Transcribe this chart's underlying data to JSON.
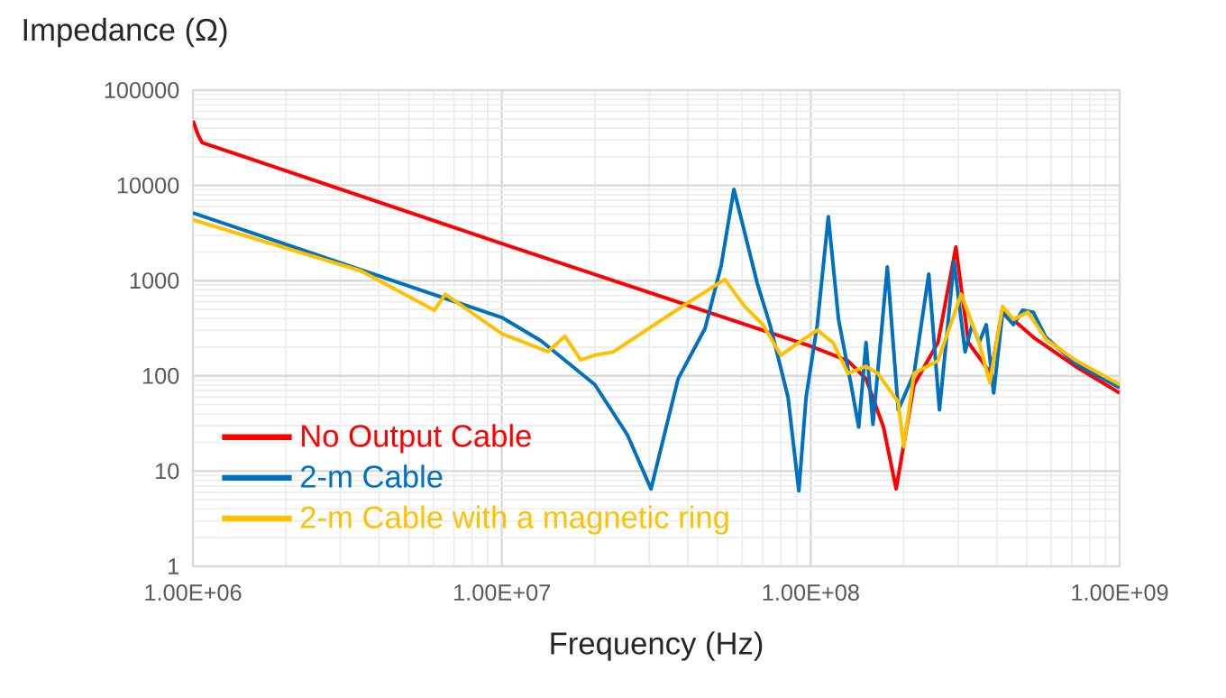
{
  "chart_data": {
    "type": "line",
    "ylabel": "Impedance (Ω)",
    "xlabel": "Frequency (Hz)",
    "log": "xy",
    "grid": true,
    "legend": "bottom left",
    "marker": "none",
    "line_style": "solid",
    "xlim": [
      1000000,
      1000000000
    ],
    "ylim": [
      1,
      100000
    ],
    "xticks": [
      {
        "value": 1000000,
        "label": "1.00E+06"
      },
      {
        "value": 10000000,
        "label": "1.00E+07"
      },
      {
        "value": 100000000,
        "label": "1.00E+08"
      },
      {
        "value": 1000000000,
        "label": "1.00E+09"
      }
    ],
    "yticks": [
      1,
      10,
      100,
      1000,
      10000,
      100000
    ],
    "series": [
      {
        "name": "No Output Cable",
        "color": "#ff0000",
        "x": [
          1000000.0,
          1040000.0,
          1070000.0,
          10000000.0,
          100000000.0,
          132000000.0,
          151000000.0,
          172000000.0,
          189000000.0,
          216000000.0,
          258000000.0,
          295000000.0,
          324000000.0,
          383000000.0,
          417000000.0,
          526000000.0,
          719000000.0,
          1000000000.0
        ],
        "values": [
          47600,
          33600,
          28200,
          2450,
          205,
          144,
          93,
          29,
          6.5,
          81,
          223,
          2250,
          223,
          106,
          489,
          254,
          126,
          66
        ]
      },
      {
        "name": "2-m Cable",
        "color": "#0070c0",
        "x": [
          1000000.0,
          10000000.0,
          13400000.0,
          20000000.0,
          25500000.0,
          30400000.0,
          37200000.0,
          45500000.0,
          51300000.0,
          56400000.0,
          67100000.0,
          73800000.0,
          84400000.0,
          91500000.0,
          96600000.0,
          105000000.0,
          114000000.0,
          123000000.0,
          135000000.0,
          143000000.0,
          151000000.0,
          159000000.0,
          177000000.0,
          192000000.0,
          216000000.0,
          241000000.0,
          261000000.0,
          291000000.0,
          316000000.0,
          333000000.0,
          351000000.0,
          370000000.0,
          391000000.0,
          418000000.0,
          453000000.0,
          485000000.0,
          525000000.0,
          577000000.0,
          725000000.0,
          1000000000.0
        ],
        "values": [
          5150,
          410,
          233,
          81,
          24,
          6.5,
          93,
          316,
          1450,
          9100,
          940,
          345,
          60,
          6.2,
          60,
          345,
          4700,
          392,
          81,
          29,
          224,
          31,
          1390,
          44,
          106,
          1170,
          44,
          1590,
          178,
          345,
          224,
          345,
          66,
          467,
          345,
          489,
          467,
          254,
          132,
          75
        ]
      },
      {
        "name": "2-m Cable with a magnetic ring",
        "color": "#ffc000",
        "x": [
          1000000.0,
          3490000.0,
          6050000.0,
          6560000.0,
          10000000.0,
          14100000.0,
          16000000.0,
          18000000.0,
          20000000.0,
          22900000.0,
          31200000.0,
          40800000.0,
          52700000.0,
          61100000.0,
          70000000.0,
          80000000.0,
          91500000.0,
          105000000.0,
          118000000.0,
          132000000.0,
          151000000.0,
          165000000.0,
          192000000.0,
          200000000.0,
          216000000.0,
          258000000.0,
          307000000.0,
          351000000.0,
          380000000.0,
          418000000.0,
          453000000.0,
          505000000.0,
          577000000.0,
          725000000.0,
          1000000000.0
        ],
        "values": [
          4350,
          1270,
          490,
          720,
          277,
          180,
          260,
          147,
          165,
          178,
          345,
          610,
          1030,
          535,
          345,
          165,
          224,
          302,
          224,
          106,
          126,
          106,
          53,
          18,
          106,
          144,
          720,
          224,
          85,
          535,
          392,
          467,
          242,
          144,
          81
        ]
      }
    ]
  }
}
